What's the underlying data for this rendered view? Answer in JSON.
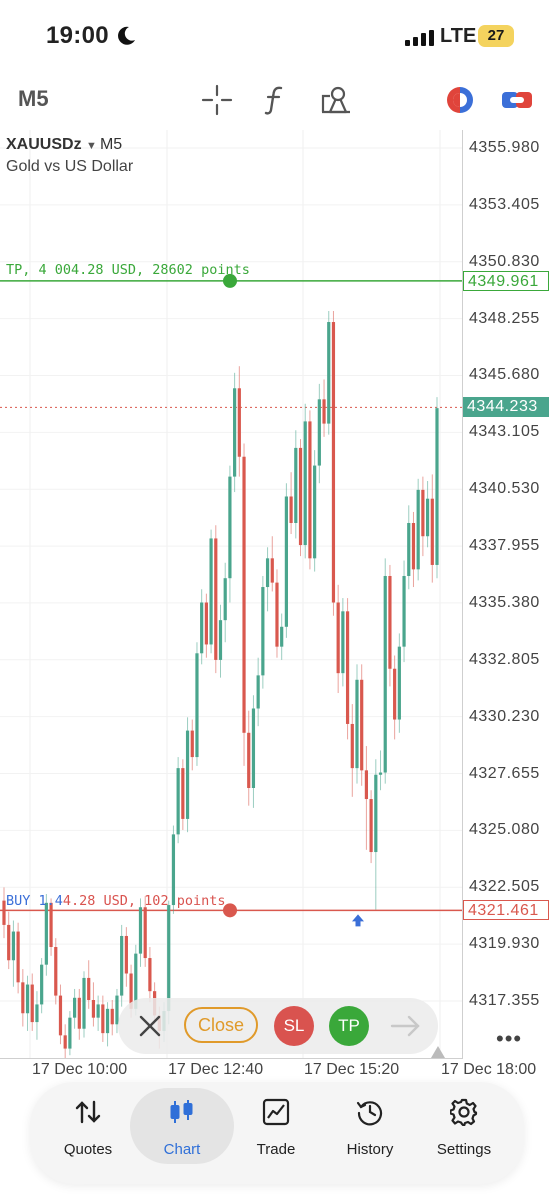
{
  "status_bar": {
    "time": "19:00",
    "network": "LTE",
    "battery": "27"
  },
  "toolbar": {
    "timeframe": "M5",
    "icons": [
      "crosshair-icon",
      "function-icon",
      "objects-icon",
      "one-click-trading-icon",
      "account-switch-icon"
    ]
  },
  "chart_header": {
    "symbol": "XAUUSDz",
    "timeframe": "M5",
    "description": "Gold vs US Dollar"
  },
  "chart_data": {
    "type": "candlestick",
    "price_ticks": [
      "4355.980",
      "4353.405",
      "4350.830",
      "4348.255",
      "4345.680",
      "4343.105",
      "4340.530",
      "4337.955",
      "4335.380",
      "4332.805",
      "4330.230",
      "4327.655",
      "4325.080",
      "4322.505",
      "4319.930",
      "4317.355"
    ],
    "time_labels": [
      "17 Dec 10:00",
      "17 Dec 12:40",
      "17 Dec 15:20",
      "17 Dec 18:00"
    ],
    "ylim": [
      4314.8,
      4358.0
    ],
    "tp_price": 4349.961,
    "current_price": 4344.233,
    "entry_price": 4321.461,
    "candles": [
      [
        4321.9,
        4322.5,
        4320.2,
        4320.8
      ],
      [
        4320.8,
        4321.4,
        4318.8,
        4319.2
      ],
      [
        4319.2,
        4321.0,
        4318.0,
        4320.5
      ],
      [
        4320.5,
        4320.9,
        4317.7,
        4318.2
      ],
      [
        4318.2,
        4318.8,
        4316.2,
        4316.8
      ],
      [
        4316.8,
        4318.5,
        4316.0,
        4318.1
      ],
      [
        4318.1,
        4318.6,
        4316.0,
        4316.4
      ],
      [
        4316.4,
        4317.8,
        4315.6,
        4317.2
      ],
      [
        4317.2,
        4319.3,
        4316.8,
        4319.0
      ],
      [
        4319.0,
        4322.2,
        4318.5,
        4321.8
      ],
      [
        4321.8,
        4322.0,
        4319.4,
        4319.8
      ],
      [
        4319.8,
        4320.2,
        4317.2,
        4317.6
      ],
      [
        4317.6,
        4318.1,
        4315.4,
        4315.8
      ],
      [
        4315.8,
        4316.3,
        4314.6,
        4315.2
      ],
      [
        4315.2,
        4316.9,
        4314.9,
        4316.6
      ],
      [
        4316.6,
        4317.9,
        4316.1,
        4317.5
      ],
      [
        4317.5,
        4317.9,
        4315.6,
        4316.1
      ],
      [
        4316.1,
        4318.7,
        4315.7,
        4318.4
      ],
      [
        4318.4,
        4319.2,
        4317.0,
        4317.4
      ],
      [
        4317.4,
        4318.2,
        4316.2,
        4316.6
      ],
      [
        4316.6,
        4317.6,
        4316.0,
        4317.2
      ],
      [
        4317.2,
        4317.6,
        4315.5,
        4315.9
      ],
      [
        4315.9,
        4317.3,
        4315.3,
        4317.0
      ],
      [
        4317.0,
        4317.4,
        4315.8,
        4316.3
      ],
      [
        4316.3,
        4317.9,
        4315.9,
        4317.6
      ],
      [
        4317.6,
        4320.8,
        4317.1,
        4320.3
      ],
      [
        4320.3,
        4320.7,
        4318.0,
        4318.6
      ],
      [
        4318.6,
        4319.0,
        4316.6,
        4317.0
      ],
      [
        4317.0,
        4319.9,
        4316.7,
        4319.5
      ],
      [
        4319.5,
        4322.0,
        4318.9,
        4321.6
      ],
      [
        4321.6,
        4322.1,
        4318.9,
        4319.3
      ],
      [
        4319.3,
        4319.8,
        4317.3,
        4317.8
      ],
      [
        4317.8,
        4318.2,
        4316.3,
        4316.7
      ],
      [
        4316.7,
        4317.1,
        4315.2,
        4316.0
      ],
      [
        4316.0,
        4317.3,
        4315.5,
        4316.9
      ],
      [
        4316.9,
        4321.9,
        4316.3,
        4321.7
      ],
      [
        4321.7,
        4325.3,
        4321.3,
        4324.9
      ],
      [
        4324.9,
        4328.4,
        4324.5,
        4327.9
      ],
      [
        4327.9,
        4328.3,
        4325.1,
        4325.6
      ],
      [
        4325.6,
        4330.2,
        4325.0,
        4329.6
      ],
      [
        4329.6,
        4330.1,
        4327.8,
        4328.4
      ],
      [
        4328.4,
        4333.6,
        4328.0,
        4333.1
      ],
      [
        4333.1,
        4336.0,
        4332.6,
        4335.4
      ],
      [
        4335.4,
        4335.8,
        4332.9,
        4333.5
      ],
      [
        4333.5,
        4338.7,
        4333.1,
        4338.3
      ],
      [
        4338.3,
        4338.9,
        4332.2,
        4332.8
      ],
      [
        4332.8,
        4335.3,
        4332.0,
        4334.6
      ],
      [
        4334.6,
        4337.2,
        4333.6,
        4336.5
      ],
      [
        4336.5,
        4341.6,
        4335.4,
        4341.1
      ],
      [
        4341.1,
        4345.8,
        4340.4,
        4345.1
      ],
      [
        4345.1,
        4346.1,
        4341.1,
        4342.0
      ],
      [
        4342.0,
        4342.6,
        4328.0,
        4329.5
      ],
      [
        4329.5,
        4330.5,
        4326.2,
        4327.0
      ],
      [
        4327.0,
        4331.2,
        4326.1,
        4330.6
      ],
      [
        4330.6,
        4332.9,
        4329.8,
        4332.1
      ],
      [
        4332.1,
        4336.6,
        4331.5,
        4336.1
      ],
      [
        4336.1,
        4337.9,
        4335.0,
        4337.4
      ],
      [
        4337.4,
        4338.4,
        4335.9,
        4336.3
      ],
      [
        4336.3,
        4336.9,
        4332.9,
        4333.4
      ],
      [
        4333.4,
        4334.9,
        4332.8,
        4334.3
      ],
      [
        4334.3,
        4340.8,
        4333.8,
        4340.2
      ],
      [
        4340.2,
        4341.3,
        4338.5,
        4339.0
      ],
      [
        4339.0,
        4343.2,
        4338.3,
        4342.4
      ],
      [
        4342.4,
        4342.8,
        4337.5,
        4338.0
      ],
      [
        4338.0,
        4344.4,
        4337.4,
        4343.6
      ],
      [
        4343.6,
        4344.1,
        4336.9,
        4337.4
      ],
      [
        4337.4,
        4342.3,
        4336.8,
        4341.6
      ],
      [
        4341.6,
        4345.3,
        4340.8,
        4344.6
      ],
      [
        4344.6,
        4345.5,
        4342.9,
        4343.5
      ],
      [
        4343.5,
        4348.6,
        4343.0,
        4348.1
      ],
      [
        4348.1,
        4348.6,
        4334.8,
        4335.4
      ],
      [
        4335.4,
        4336.2,
        4331.3,
        4332.2
      ],
      [
        4332.2,
        4335.6,
        4331.6,
        4335.0
      ],
      [
        4335.0,
        4335.6,
        4329.2,
        4329.9
      ],
      [
        4329.9,
        4330.8,
        4326.6,
        4327.9
      ],
      [
        4327.9,
        4332.6,
        4327.2,
        4331.9
      ],
      [
        4331.9,
        4332.6,
        4327.1,
        4327.8
      ],
      [
        4327.8,
        4328.9,
        4324.2,
        4326.5
      ],
      [
        4326.5,
        4326.9,
        4323.6,
        4324.1
      ],
      [
        4324.1,
        4328.3,
        4321.5,
        4327.6
      ],
      [
        4327.6,
        4328.7,
        4326.9,
        4327.7
      ],
      [
        4327.7,
        4337.4,
        4327.2,
        4336.6
      ],
      [
        4336.6,
        4337.1,
        4331.6,
        4332.4
      ],
      [
        4332.4,
        4333.0,
        4329.2,
        4330.1
      ],
      [
        4330.1,
        4334.0,
        4329.5,
        4333.4
      ],
      [
        4333.4,
        4337.3,
        4332.7,
        4336.6
      ],
      [
        4336.6,
        4339.8,
        4336.0,
        4339.0
      ],
      [
        4339.0,
        4339.5,
        4336.1,
        4336.9
      ],
      [
        4336.9,
        4341.0,
        4336.4,
        4340.5
      ],
      [
        4340.5,
        4341.1,
        4337.5,
        4338.4
      ],
      [
        4338.4,
        4340.9,
        4337.9,
        4340.1
      ],
      [
        4340.1,
        4341.2,
        4336.3,
        4337.1
      ],
      [
        4337.1,
        4344.7,
        4336.5,
        4344.2
      ]
    ],
    "bullish_color": "#4aa58d",
    "bearish_color": "#d9584e"
  },
  "overlay": {
    "tp_label": "TP, 4 004.28 USD, 28602 points",
    "buy_prefix": "BUY 1.4",
    "buy_label": "4.28 USD, 102 points",
    "tp_badge": "4349.961",
    "price_badge": "4344.233",
    "entry_badge": "4321.461",
    "tp_color": "#3aa83a",
    "sl_color": "#d9534f"
  },
  "trade_panel": {
    "close": "Close",
    "sl": "SL",
    "tp": "TP"
  },
  "tabs": [
    {
      "label": "Quotes",
      "icon": "quotes-icon"
    },
    {
      "label": "Chart",
      "icon": "chart-icon"
    },
    {
      "label": "Trade",
      "icon": "trade-icon"
    },
    {
      "label": "History",
      "icon": "history-icon"
    },
    {
      "label": "Settings",
      "icon": "settings-icon"
    }
  ]
}
